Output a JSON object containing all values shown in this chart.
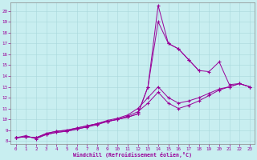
{
  "xlabel": "Windchill (Refroidissement éolien,°C)",
  "bg_color": "#c8eef0",
  "line_color": "#990099",
  "xlim": [
    -0.5,
    23.5
  ],
  "ylim": [
    7.7,
    20.8
  ],
  "xticks": [
    0,
    1,
    2,
    3,
    4,
    5,
    6,
    7,
    8,
    9,
    10,
    11,
    12,
    13,
    14,
    15,
    16,
    17,
    18,
    19,
    20,
    21,
    22,
    23
  ],
  "yticks": [
    8,
    9,
    10,
    11,
    12,
    13,
    14,
    15,
    16,
    17,
    18,
    19,
    20
  ],
  "lines": [
    {
      "x": [
        0,
        1,
        2,
        3,
        4,
        5,
        6,
        7,
        8,
        9,
        10,
        11,
        12,
        13,
        14,
        15,
        16,
        17,
        18,
        19,
        20,
        21,
        22,
        23
      ],
      "y": [
        8.3,
        8.4,
        8.3,
        8.7,
        8.9,
        9.0,
        9.2,
        9.4,
        9.6,
        9.8,
        10.0,
        10.2,
        10.5,
        13.0,
        20.5,
        17.0,
        16.5,
        15.5,
        14.5,
        null,
        null,
        null,
        null,
        null
      ]
    },
    {
      "x": [
        0,
        1,
        2,
        3,
        4,
        5,
        6,
        7,
        8,
        9,
        10,
        11,
        12,
        13,
        14,
        15,
        16,
        17,
        18,
        19,
        20,
        21,
        22,
        23
      ],
      "y": [
        8.3,
        8.4,
        8.3,
        8.7,
        8.9,
        9.0,
        9.2,
        9.4,
        9.6,
        9.8,
        10.0,
        10.2,
        10.5,
        13.0,
        19.0,
        17.0,
        16.5,
        15.5,
        14.5,
        14.4,
        15.3,
        13.2,
        13.3,
        13.0
      ]
    },
    {
      "x": [
        0,
        1,
        2,
        3,
        4,
        5,
        6,
        7,
        8,
        9,
        10,
        11,
        12,
        13,
        14,
        15,
        16,
        17,
        18,
        19,
        20,
        21,
        22,
        23
      ],
      "y": [
        8.3,
        8.5,
        8.2,
        8.6,
        8.8,
        8.9,
        9.1,
        9.3,
        9.6,
        9.9,
        10.1,
        10.4,
        11.0,
        12.0,
        13.0,
        12.0,
        11.5,
        11.7,
        12.0,
        12.4,
        12.8,
        13.0,
        13.3,
        13.0
      ]
    },
    {
      "x": [
        0,
        1,
        2,
        3,
        4,
        5,
        6,
        7,
        8,
        9,
        10,
        11,
        12,
        13,
        14,
        15,
        16,
        17,
        18,
        19,
        20,
        21,
        22,
        23
      ],
      "y": [
        8.3,
        8.4,
        8.3,
        8.6,
        8.8,
        8.9,
        9.1,
        9.3,
        9.5,
        9.8,
        10.0,
        10.3,
        10.7,
        11.5,
        12.5,
        11.5,
        11.0,
        11.3,
        11.7,
        12.2,
        12.7,
        13.0,
        13.3,
        13.0
      ]
    }
  ]
}
